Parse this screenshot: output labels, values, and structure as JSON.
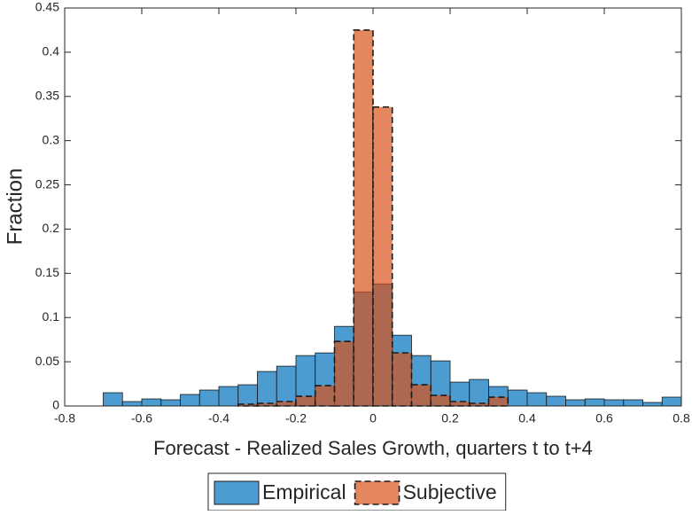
{
  "chart_data": {
    "type": "histogram",
    "x_label": "Forecast - Realized Sales Growth, quarters t to t+4",
    "y_label": "Fraction",
    "bins": [
      -0.7,
      -0.65,
      -0.6,
      -0.55,
      -0.5,
      -0.45,
      -0.4,
      -0.35,
      -0.3,
      -0.25,
      -0.2,
      -0.15,
      -0.1,
      -0.05,
      0,
      0.05,
      0.1,
      0.15,
      0.2,
      0.25,
      0.3,
      0.35,
      0.4,
      0.45,
      0.5,
      0.55,
      0.6,
      0.65,
      0.7,
      0.75,
      0.8
    ],
    "series": [
      {
        "name": "Empirical",
        "color": "#0072bd",
        "dashed": false,
        "values": [
          0.015,
          0.005,
          0.008,
          0.007,
          0.013,
          0.018,
          0.022,
          0.024,
          0.039,
          0.045,
          0.057,
          0.06,
          0.09,
          0.129,
          0.138,
          0.08,
          0.057,
          0.051,
          0.027,
          0.03,
          0.022,
          0.018,
          0.015,
          0.011,
          0.007,
          0.008,
          0.007,
          0.007,
          0.004,
          0.01
        ]
      },
      {
        "name": "Subjective",
        "color": "#d95319",
        "dashed": true,
        "values": [
          0,
          0,
          0,
          0,
          0,
          0,
          0,
          0.002,
          0.003,
          0.005,
          0.011,
          0.023,
          0.073,
          0.425,
          0.338,
          0.06,
          0.024,
          0.012,
          0.005,
          0.003,
          0.01,
          0,
          0,
          0,
          0,
          0,
          0,
          0,
          0,
          0
        ]
      }
    ],
    "xlim": [
      -0.8,
      0.8
    ],
    "xticks": [
      -0.8,
      -0.6,
      -0.4,
      -0.2,
      0,
      0.2,
      0.4,
      0.6,
      0.8
    ],
    "ylim": [
      0,
      0.45
    ],
    "yticks": [
      0,
      0.05,
      0.1,
      0.15,
      0.2,
      0.25,
      0.3,
      0.35,
      0.4,
      0.45
    ],
    "legend": "bottom"
  }
}
